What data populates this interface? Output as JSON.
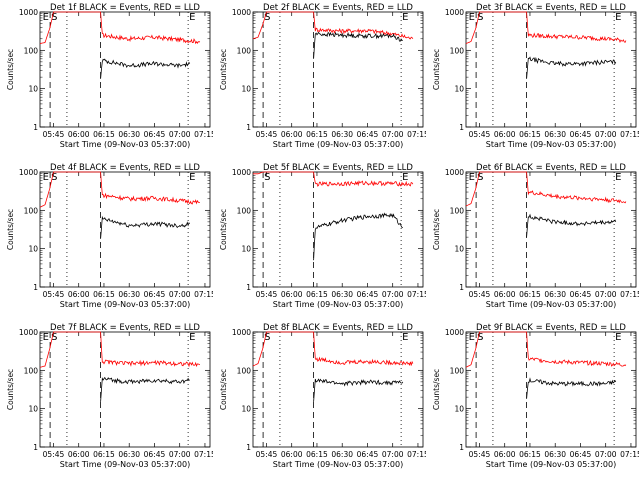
{
  "chart_data": [
    {
      "type": "line",
      "title": "Det 1f BLACK = Events, RED = LLD",
      "xlabel": "Start Time (09-Nov-03 05:37:00)",
      "ylabel": "Counts/sec",
      "marker_labels": [
        "E",
        "S",
        "E"
      ],
      "xticks": [
        "05:45",
        "06:00",
        "06:15",
        "06:30",
        "06:45",
        "07:00",
        "07:15"
      ],
      "yscale": "log",
      "ylim": [
        1,
        1000
      ],
      "yticks": [
        "1",
        "10",
        "100",
        "1000"
      ],
      "series": [
        {
          "color": "#ff0000",
          "values": [
            {
              "t": "05:37",
              "y": 150
            },
            {
              "t": "05:40",
              "y": 160
            },
            {
              "t": "05:43",
              "y": 400
            },
            {
              "t": "05:45",
              "y": 1000
            },
            {
              "t": "06:13",
              "y": 1000
            },
            {
              "t": "06:14",
              "y": 250
            },
            {
              "t": "06:30",
              "y": 200
            },
            {
              "t": "06:45",
              "y": 220
            },
            {
              "t": "07:00",
              "y": 190
            },
            {
              "t": "07:12",
              "y": 170
            }
          ]
        },
        {
          "color": "#000000",
          "values": [
            {
              "t": "06:13",
              "y": 18
            },
            {
              "t": "06:14",
              "y": 55
            },
            {
              "t": "06:30",
              "y": 40
            },
            {
              "t": "06:45",
              "y": 45
            },
            {
              "t": "07:00",
              "y": 40
            },
            {
              "t": "07:06",
              "y": 45
            }
          ]
        }
      ]
    },
    {
      "type": "line",
      "title": "Det 2f BLACK = Events, RED = LLD",
      "xlabel": "Start Time (09-Nov-03 05:37:00)",
      "ylabel": "Counts/sec",
      "marker_labels": [
        "S",
        "E"
      ],
      "xticks": [
        "05:45",
        "06:00",
        "06:15",
        "06:30",
        "06:45",
        "07:00",
        "07:15"
      ],
      "yscale": "log",
      "ylim": [
        1,
        1000
      ],
      "yticks": [
        "1",
        "10",
        "100",
        "1000"
      ],
      "series": [
        {
          "color": "#ff0000",
          "values": [
            {
              "t": "05:37",
              "y": 200
            },
            {
              "t": "05:40",
              "y": 220
            },
            {
              "t": "05:43",
              "y": 500
            },
            {
              "t": "05:45",
              "y": 1000
            },
            {
              "t": "06:13",
              "y": 1000
            },
            {
              "t": "06:14",
              "y": 350
            },
            {
              "t": "06:30",
              "y": 320
            },
            {
              "t": "06:45",
              "y": 330
            },
            {
              "t": "07:00",
              "y": 270
            },
            {
              "t": "07:12",
              "y": 200
            }
          ]
        },
        {
          "color": "#000000",
          "values": [
            {
              "t": "06:13",
              "y": 60
            },
            {
              "t": "06:14",
              "y": 270
            },
            {
              "t": "06:30",
              "y": 250
            },
            {
              "t": "06:45",
              "y": 240
            },
            {
              "t": "07:00",
              "y": 240
            },
            {
              "t": "07:06",
              "y": 180
            }
          ]
        }
      ]
    },
    {
      "type": "line",
      "title": "Det 3f BLACK = Events, RED = LLD",
      "xlabel": "Start Time (09-Nov-03 05:37:00)",
      "ylabel": "Counts/sec",
      "marker_labels": [
        "E",
        "S",
        "E"
      ],
      "xticks": [
        "05:45",
        "06:00",
        "06:15",
        "06:30",
        "06:45",
        "07:00",
        "07:15"
      ],
      "yscale": "log",
      "ylim": [
        1,
        1000
      ],
      "yticks": [
        "1",
        "10",
        "100",
        "1000"
      ],
      "series": [
        {
          "color": "#ff0000",
          "values": [
            {
              "t": "05:37",
              "y": 150
            },
            {
              "t": "05:40",
              "y": 170
            },
            {
              "t": "05:43",
              "y": 400
            },
            {
              "t": "05:45",
              "y": 1000
            },
            {
              "t": "06:13",
              "y": 1000
            },
            {
              "t": "06:14",
              "y": 250
            },
            {
              "t": "06:30",
              "y": 230
            },
            {
              "t": "06:45",
              "y": 220
            },
            {
              "t": "07:00",
              "y": 200
            },
            {
              "t": "07:12",
              "y": 180
            }
          ]
        },
        {
          "color": "#000000",
          "values": [
            {
              "t": "06:13",
              "y": 18
            },
            {
              "t": "06:14",
              "y": 60
            },
            {
              "t": "06:30",
              "y": 45
            },
            {
              "t": "06:45",
              "y": 45
            },
            {
              "t": "07:00",
              "y": 50
            },
            {
              "t": "07:06",
              "y": 50
            }
          ]
        }
      ]
    },
    {
      "type": "line",
      "title": "Det 4f BLACK = Events, RED = LLD",
      "xlabel": "Start Time (09-Nov-03 05:37:00)",
      "ylabel": "Counts/sec",
      "marker_labels": [
        "E",
        "S",
        "E"
      ],
      "xticks": [
        "05:45",
        "06:00",
        "06:15",
        "06:30",
        "06:45",
        "07:00",
        "07:15"
      ],
      "yscale": "log",
      "ylim": [
        1,
        1000
      ],
      "yticks": [
        "1",
        "10",
        "100",
        "1000"
      ],
      "series": [
        {
          "color": "#ff0000",
          "values": [
            {
              "t": "05:37",
              "y": 120
            },
            {
              "t": "05:40",
              "y": 140
            },
            {
              "t": "05:43",
              "y": 400
            },
            {
              "t": "05:45",
              "y": 1000
            },
            {
              "t": "06:13",
              "y": 1000
            },
            {
              "t": "06:14",
              "y": 250
            },
            {
              "t": "06:30",
              "y": 200
            },
            {
              "t": "06:45",
              "y": 210
            },
            {
              "t": "07:00",
              "y": 180
            },
            {
              "t": "07:12",
              "y": 160
            }
          ]
        },
        {
          "color": "#000000",
          "values": [
            {
              "t": "06:13",
              "y": 18
            },
            {
              "t": "06:14",
              "y": 60
            },
            {
              "t": "06:30",
              "y": 40
            },
            {
              "t": "06:45",
              "y": 45
            },
            {
              "t": "07:00",
              "y": 40
            },
            {
              "t": "07:06",
              "y": 45
            }
          ]
        }
      ]
    },
    {
      "type": "line",
      "title": "Det 5f BLACK = Events, RED = LLD",
      "xlabel": "Start Time (09-Nov-03 05:37:00)",
      "ylabel": "Counts/sec",
      "marker_labels": [
        "S",
        "E"
      ],
      "xticks": [
        "05:45",
        "06:00",
        "06:15",
        "06:30",
        "06:45",
        "07:00",
        "07:15"
      ],
      "yscale": "log",
      "ylim": [
        1,
        1000
      ],
      "yticks": [
        "1",
        "10",
        "100",
        "1000"
      ],
      "series": [
        {
          "color": "#ff0000",
          "values": [
            {
              "t": "05:37",
              "y": 900
            },
            {
              "t": "05:40",
              "y": 900
            },
            {
              "t": "05:43",
              "y": 1000
            },
            {
              "t": "06:13",
              "y": 1000
            },
            {
              "t": "06:14",
              "y": 480
            },
            {
              "t": "06:30",
              "y": 500
            },
            {
              "t": "06:45",
              "y": 520
            },
            {
              "t": "07:00",
              "y": 500
            },
            {
              "t": "07:12",
              "y": 480
            }
          ]
        },
        {
          "color": "#000000",
          "values": [
            {
              "t": "06:13",
              "y": 5
            },
            {
              "t": "06:14",
              "y": 35
            },
            {
              "t": "06:30",
              "y": 55
            },
            {
              "t": "06:45",
              "y": 70
            },
            {
              "t": "07:00",
              "y": 75
            },
            {
              "t": "07:06",
              "y": 35
            }
          ]
        }
      ]
    },
    {
      "type": "line",
      "title": "Det 6f BLACK = Events, RED = LLD",
      "xlabel": "Start Time (09-Nov-03 05:37:00)",
      "ylabel": "Counts/sec",
      "marker_labels": [
        "E",
        "S",
        "E"
      ],
      "xticks": [
        "05:45",
        "06:00",
        "06:15",
        "06:30",
        "06:45",
        "07:00",
        "07:15"
      ],
      "yscale": "log",
      "ylim": [
        1,
        1000
      ],
      "yticks": [
        "1",
        "10",
        "100",
        "1000"
      ],
      "series": [
        {
          "color": "#ff0000",
          "values": [
            {
              "t": "05:37",
              "y": 130
            },
            {
              "t": "05:40",
              "y": 150
            },
            {
              "t": "05:43",
              "y": 400
            },
            {
              "t": "05:45",
              "y": 1000
            },
            {
              "t": "06:13",
              "y": 1000
            },
            {
              "t": "06:14",
              "y": 300
            },
            {
              "t": "06:30",
              "y": 230
            },
            {
              "t": "06:45",
              "y": 210
            },
            {
              "t": "07:00",
              "y": 190
            },
            {
              "t": "07:12",
              "y": 170
            }
          ]
        },
        {
          "color": "#000000",
          "values": [
            {
              "t": "06:13",
              "y": 20
            },
            {
              "t": "06:14",
              "y": 70
            },
            {
              "t": "06:30",
              "y": 50
            },
            {
              "t": "06:45",
              "y": 45
            },
            {
              "t": "07:00",
              "y": 48
            },
            {
              "t": "07:06",
              "y": 50
            }
          ]
        }
      ]
    },
    {
      "type": "line",
      "title": "Det 7f BLACK = Events, RED = LLD",
      "xlabel": "Start Time (09-Nov-03 05:37:00)",
      "ylabel": "Counts/sec",
      "marker_labels": [
        "E",
        "S",
        "E"
      ],
      "xticks": [
        "05:45",
        "06:00",
        "06:15",
        "06:30",
        "06:45",
        "07:00",
        "07:15"
      ],
      "yscale": "log",
      "ylim": [
        1,
        1000
      ],
      "yticks": [
        "1",
        "10",
        "100",
        "1000"
      ],
      "series": [
        {
          "color": "#ff0000",
          "values": [
            {
              "t": "05:37",
              "y": 120
            },
            {
              "t": "05:40",
              "y": 130
            },
            {
              "t": "05:43",
              "y": 400
            },
            {
              "t": "05:45",
              "y": 1000
            },
            {
              "t": "06:13",
              "y": 1000
            },
            {
              "t": "06:14",
              "y": 170
            },
            {
              "t": "06:30",
              "y": 150
            },
            {
              "t": "06:45",
              "y": 160
            },
            {
              "t": "07:00",
              "y": 150
            },
            {
              "t": "07:12",
              "y": 140
            }
          ]
        },
        {
          "color": "#000000",
          "values": [
            {
              "t": "06:13",
              "y": 15
            },
            {
              "t": "06:14",
              "y": 60
            },
            {
              "t": "06:30",
              "y": 50
            },
            {
              "t": "06:45",
              "y": 55
            },
            {
              "t": "07:00",
              "y": 50
            },
            {
              "t": "07:06",
              "y": 55
            }
          ]
        }
      ]
    },
    {
      "type": "line",
      "title": "Det 8f BLACK = Events, RED = LLD",
      "xlabel": "Start Time (09-Nov-03 05:37:00)",
      "ylabel": "Counts/sec",
      "marker_labels": [
        "S",
        "E"
      ],
      "xticks": [
        "05:45",
        "06:00",
        "06:15",
        "06:30",
        "06:45",
        "07:00",
        "07:15"
      ],
      "yscale": "log",
      "ylim": [
        1,
        1000
      ],
      "yticks": [
        "1",
        "10",
        "100",
        "1000"
      ],
      "series": [
        {
          "color": "#ff0000",
          "values": [
            {
              "t": "05:37",
              "y": 130
            },
            {
              "t": "05:40",
              "y": 150
            },
            {
              "t": "05:43",
              "y": 400
            },
            {
              "t": "05:45",
              "y": 1000
            },
            {
              "t": "06:13",
              "y": 1000
            },
            {
              "t": "06:14",
              "y": 200
            },
            {
              "t": "06:30",
              "y": 160
            },
            {
              "t": "06:45",
              "y": 170
            },
            {
              "t": "07:00",
              "y": 160
            },
            {
              "t": "07:12",
              "y": 150
            }
          ]
        },
        {
          "color": "#000000",
          "values": [
            {
              "t": "06:13",
              "y": 15
            },
            {
              "t": "06:14",
              "y": 55
            },
            {
              "t": "06:30",
              "y": 45
            },
            {
              "t": "06:45",
              "y": 50
            },
            {
              "t": "07:00",
              "y": 48
            },
            {
              "t": "07:06",
              "y": 50
            }
          ]
        }
      ]
    },
    {
      "type": "line",
      "title": "Det 9f BLACK = Events, RED = LLD",
      "xlabel": "Start Time (09-Nov-03 05:37:00)",
      "ylabel": "Counts/sec",
      "marker_labels": [
        "E",
        "S",
        "E"
      ],
      "xticks": [
        "05:45",
        "06:00",
        "06:15",
        "06:30",
        "06:45",
        "07:00",
        "07:15"
      ],
      "yscale": "log",
      "ylim": [
        1,
        1000
      ],
      "yticks": [
        "1",
        "10",
        "100",
        "1000"
      ],
      "series": [
        {
          "color": "#ff0000",
          "values": [
            {
              "t": "05:37",
              "y": 120
            },
            {
              "t": "05:40",
              "y": 140
            },
            {
              "t": "05:43",
              "y": 400
            },
            {
              "t": "05:45",
              "y": 1000
            },
            {
              "t": "06:13",
              "y": 1000
            },
            {
              "t": "06:14",
              "y": 200
            },
            {
              "t": "06:30",
              "y": 170
            },
            {
              "t": "06:45",
              "y": 160
            },
            {
              "t": "07:00",
              "y": 150
            },
            {
              "t": "07:12",
              "y": 140
            }
          ]
        },
        {
          "color": "#000000",
          "values": [
            {
              "t": "06:13",
              "y": 18
            },
            {
              "t": "06:14",
              "y": 55
            },
            {
              "t": "06:30",
              "y": 45
            },
            {
              "t": "06:45",
              "y": 45
            },
            {
              "t": "07:00",
              "y": 45
            },
            {
              "t": "07:06",
              "y": 50
            }
          ]
        }
      ]
    }
  ]
}
